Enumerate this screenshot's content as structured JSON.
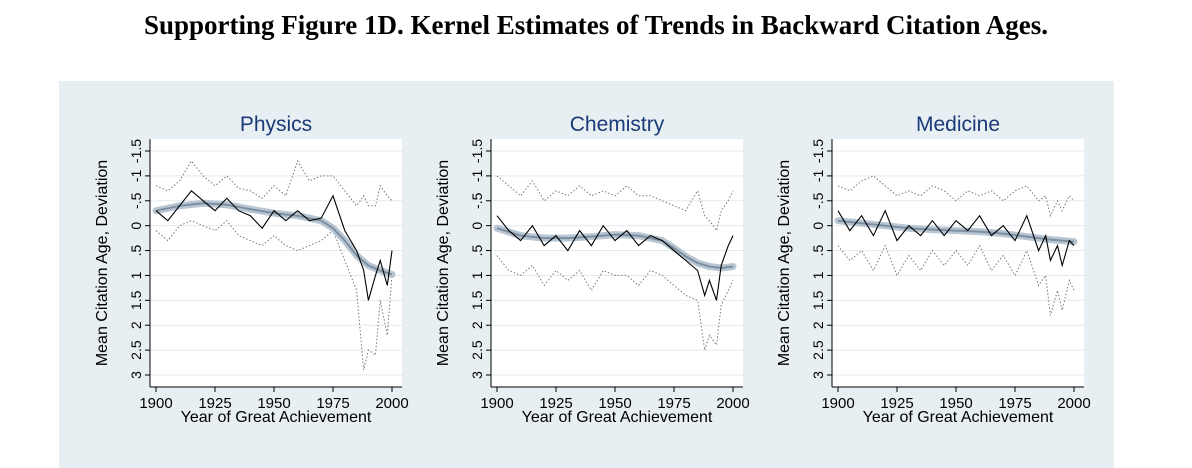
{
  "figure_title": "Supporting Figure 1D. Kernel Estimates of Trends in Backward Citation Ages.",
  "colors": {
    "background": "#ffffff",
    "panel_background": "#e8eff2",
    "plot_background": "#ffffff",
    "observed_line": "#000000",
    "bounds_line": "#777777",
    "trend_line": "#7d8fa0",
    "trend_band": "#b7c6d2",
    "gridline": "#e3eaee"
  },
  "chart_data": [
    {
      "type": "line",
      "title": "Physics",
      "xlabel": "Year of Great Achievement",
      "ylabel": "Mean Citation Age, Deviation",
      "xlim": [
        1900,
        2000
      ],
      "ylim": [
        3,
        -1.5
      ],
      "y_axis_reversed": true,
      "x_ticks": [
        "1900",
        "1925",
        "1950",
        "1975",
        "2000"
      ],
      "y_ticks": [
        "-1.5",
        "-1",
        "-.5",
        "0",
        ".5",
        "1",
        "1.5",
        "2",
        "2.5",
        "3"
      ],
      "grid": true,
      "legend": "none",
      "trend": {
        "x": [
          1900,
          1910,
          1920,
          1930,
          1940,
          1950,
          1960,
          1970,
          1975,
          1980,
          1985,
          1990,
          1995,
          2000
        ],
        "y": [
          -0.3,
          -0.4,
          -0.45,
          -0.42,
          -0.33,
          -0.25,
          -0.2,
          -0.1,
          0.05,
          0.3,
          0.6,
          0.8,
          0.9,
          0.98
        ]
      },
      "observed": {
        "x": [
          1900,
          1905,
          1910,
          1915,
          1920,
          1925,
          1930,
          1935,
          1940,
          1945,
          1950,
          1955,
          1960,
          1965,
          1970,
          1975,
          1980,
          1985,
          1988,
          1990,
          1993,
          1995,
          1998,
          2000
        ],
        "y": [
          -0.3,
          -0.1,
          -0.4,
          -0.7,
          -0.5,
          -0.3,
          -0.55,
          -0.3,
          -0.2,
          0.05,
          -0.3,
          -0.1,
          -0.3,
          -0.1,
          -0.15,
          -0.6,
          0.1,
          0.5,
          0.9,
          1.5,
          1.0,
          0.7,
          1.2,
          0.5
        ]
      },
      "upper_bound": {
        "x": [
          1900,
          1905,
          1910,
          1915,
          1920,
          1925,
          1930,
          1935,
          1940,
          1945,
          1950,
          1955,
          1960,
          1965,
          1970,
          1975,
          1980,
          1985,
          1988,
          1990,
          1993,
          1995,
          1998,
          2000
        ],
        "y": [
          -0.8,
          -0.7,
          -0.9,
          -1.3,
          -1.0,
          -0.8,
          -1.0,
          -0.75,
          -0.7,
          -0.55,
          -0.8,
          -0.6,
          -1.3,
          -0.9,
          -1.0,
          -1.0,
          -0.7,
          -0.4,
          -0.6,
          -0.4,
          -0.4,
          -0.8,
          -0.6,
          -0.5
        ]
      },
      "lower_bound": {
        "x": [
          1900,
          1905,
          1910,
          1915,
          1920,
          1925,
          1930,
          1935,
          1940,
          1945,
          1950,
          1955,
          1960,
          1965,
          1970,
          1975,
          1980,
          1985,
          1988,
          1990,
          1993,
          1995,
          1998,
          2000
        ],
        "y": [
          0.1,
          0.3,
          0.0,
          -0.1,
          0.0,
          0.1,
          -0.1,
          0.2,
          0.3,
          0.4,
          0.2,
          0.4,
          0.5,
          0.4,
          0.3,
          0.1,
          0.7,
          1.3,
          2.9,
          2.5,
          2.6,
          1.5,
          2.2,
          1.0
        ]
      }
    },
    {
      "type": "line",
      "title": "Chemistry",
      "xlabel": "Year of Great Achievement",
      "ylabel": "Mean Citation Age, Deviation",
      "xlim": [
        1900,
        2000
      ],
      "ylim": [
        3,
        -1.5
      ],
      "y_axis_reversed": true,
      "x_ticks": [
        "1900",
        "1925",
        "1950",
        "1975",
        "2000"
      ],
      "y_ticks": [
        "-1.5",
        "-1",
        "-.5",
        "0",
        ".5",
        "1",
        "1.5",
        "2",
        "2.5",
        "3"
      ],
      "grid": true,
      "legend": "none",
      "trend": {
        "x": [
          1900,
          1910,
          1920,
          1930,
          1940,
          1950,
          1960,
          1970,
          1975,
          1980,
          1985,
          1990,
          1995,
          2000
        ],
        "y": [
          0.05,
          0.2,
          0.25,
          0.25,
          0.22,
          0.18,
          0.2,
          0.3,
          0.45,
          0.62,
          0.75,
          0.82,
          0.85,
          0.82
        ]
      },
      "observed": {
        "x": [
          1900,
          1905,
          1910,
          1915,
          1920,
          1925,
          1930,
          1935,
          1940,
          1945,
          1950,
          1955,
          1960,
          1965,
          1970,
          1975,
          1980,
          1985,
          1988,
          1990,
          1993,
          1995,
          1998,
          2000
        ],
        "y": [
          -0.2,
          0.1,
          0.3,
          0.0,
          0.4,
          0.2,
          0.5,
          0.1,
          0.4,
          0.0,
          0.3,
          0.1,
          0.4,
          0.2,
          0.3,
          0.5,
          0.7,
          0.9,
          1.4,
          1.1,
          1.5,
          0.8,
          0.4,
          0.2
        ]
      },
      "upper_bound": {
        "x": [
          1900,
          1905,
          1910,
          1915,
          1920,
          1925,
          1930,
          1935,
          1940,
          1945,
          1950,
          1955,
          1960,
          1965,
          1970,
          1975,
          1980,
          1985,
          1988,
          1990,
          1993,
          1995,
          1998,
          2000
        ],
        "y": [
          -1.0,
          -0.8,
          -0.6,
          -0.9,
          -0.5,
          -0.7,
          -0.6,
          -0.8,
          -0.6,
          -0.7,
          -0.6,
          -0.8,
          -0.6,
          -0.6,
          -0.5,
          -0.4,
          -0.3,
          -0.7,
          -0.2,
          -0.1,
          0.1,
          -0.3,
          -0.5,
          -0.7
        ]
      },
      "lower_bound": {
        "x": [
          1900,
          1905,
          1910,
          1915,
          1920,
          1925,
          1930,
          1935,
          1940,
          1945,
          1950,
          1955,
          1960,
          1965,
          1970,
          1975,
          1980,
          1985,
          1988,
          1990,
          1993,
          1995,
          1998,
          2000
        ],
        "y": [
          0.6,
          0.9,
          1.0,
          0.8,
          1.2,
          0.9,
          1.1,
          0.9,
          1.3,
          0.9,
          1.0,
          1.0,
          1.2,
          0.9,
          1.0,
          1.2,
          1.4,
          1.5,
          2.5,
          2.2,
          2.4,
          1.6,
          1.3,
          1.1
        ]
      }
    },
    {
      "type": "line",
      "title": "Medicine",
      "xlabel": "Year of Great Achievement",
      "ylabel": "Mean Citation Age, Deviation",
      "xlim": [
        1900,
        2000
      ],
      "ylim": [
        3,
        -1.5
      ],
      "y_axis_reversed": true,
      "x_ticks": [
        "1900",
        "1925",
        "1950",
        "1975",
        "2000"
      ],
      "y_ticks": [
        "-1.5",
        "-1",
        "-.5",
        "0",
        ".5",
        "1",
        "1.5",
        "2",
        "2.5",
        "3"
      ],
      "grid": true,
      "legend": "none",
      "trend": {
        "x": [
          1900,
          1910,
          1920,
          1930,
          1940,
          1950,
          1960,
          1970,
          1980,
          1990,
          2000
        ],
        "y": [
          -0.1,
          -0.05,
          0.0,
          0.05,
          0.08,
          0.1,
          0.12,
          0.16,
          0.22,
          0.28,
          0.32
        ]
      },
      "observed": {
        "x": [
          1900,
          1905,
          1910,
          1915,
          1920,
          1925,
          1930,
          1935,
          1940,
          1945,
          1950,
          1955,
          1960,
          1965,
          1970,
          1975,
          1980,
          1985,
          1988,
          1990,
          1993,
          1995,
          1998,
          2000
        ],
        "y": [
          -0.3,
          0.1,
          -0.2,
          0.2,
          -0.3,
          0.3,
          0.0,
          0.2,
          -0.1,
          0.2,
          -0.1,
          0.1,
          -0.2,
          0.2,
          0.0,
          0.3,
          -0.2,
          0.5,
          0.2,
          0.7,
          0.4,
          0.8,
          0.3,
          0.4
        ]
      },
      "upper_bound": {
        "x": [
          1900,
          1905,
          1910,
          1915,
          1920,
          1925,
          1930,
          1935,
          1940,
          1945,
          1950,
          1955,
          1960,
          1965,
          1970,
          1975,
          1980,
          1985,
          1988,
          1990,
          1993,
          1995,
          1998,
          2000
        ],
        "y": [
          -0.8,
          -0.7,
          -0.9,
          -1.0,
          -0.8,
          -0.6,
          -0.7,
          -0.6,
          -0.8,
          -0.7,
          -0.5,
          -0.7,
          -0.6,
          -0.7,
          -0.5,
          -0.7,
          -0.8,
          -0.5,
          -0.6,
          -0.2,
          -0.5,
          -0.3,
          -0.6,
          -0.5
        ]
      },
      "lower_bound": {
        "x": [
          1900,
          1905,
          1910,
          1915,
          1920,
          1925,
          1930,
          1935,
          1940,
          1945,
          1950,
          1955,
          1960,
          1965,
          1970,
          1975,
          1980,
          1985,
          1988,
          1990,
          1993,
          1995,
          1998,
          2000
        ],
        "y": [
          0.4,
          0.7,
          0.5,
          0.9,
          0.4,
          1.0,
          0.6,
          0.9,
          0.5,
          0.8,
          0.5,
          0.8,
          0.4,
          0.9,
          0.6,
          1.0,
          0.5,
          1.2,
          1.0,
          1.8,
          1.3,
          1.7,
          1.1,
          1.3
        ]
      }
    }
  ]
}
